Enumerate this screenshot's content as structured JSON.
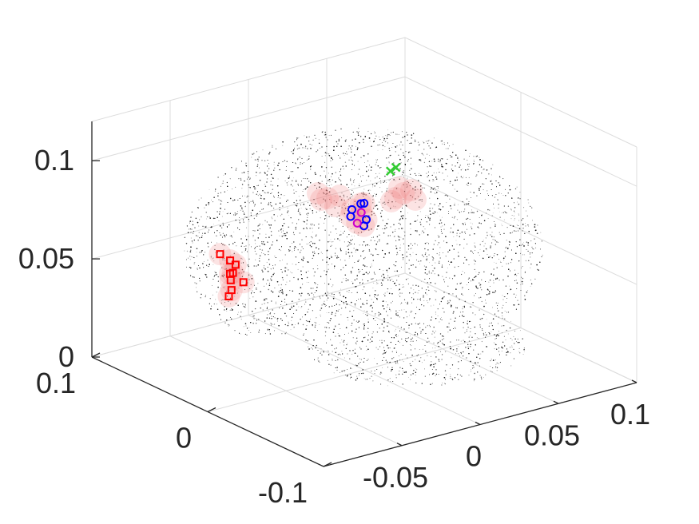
{
  "chart_data": {
    "type": "scatter",
    "view": "3d",
    "title": "",
    "xlabel": "",
    "ylabel": "",
    "zlabel": "",
    "grid": true,
    "xlim": [
      -0.1,
      0.1
    ],
    "ylim": [
      -0.1,
      0.1
    ],
    "zlim": [
      0,
      0.12
    ],
    "x_ticks": [
      "-0.05",
      "0",
      "0.05",
      "0.1"
    ],
    "y_ticks": [
      "-0.1",
      "0",
      "0.1"
    ],
    "z_ticks": [
      "0",
      "0.05",
      "0.1"
    ],
    "colors": {
      "grid": "#dcdcdc",
      "axis": "#262626",
      "brain_points": "#1a1a1a",
      "activation": "#f08080",
      "series_red": "#ff0000",
      "series_blue": "#0000ff",
      "series_green": "#33cc33",
      "series_magenta": "#cc00cc"
    },
    "series": [
      {
        "marker": "square",
        "color": "#ff0000",
        "points": [
          [
            -0.06,
            0.03,
            0.058
          ],
          [
            -0.065,
            0.028,
            0.055
          ],
          [
            -0.058,
            0.035,
            0.052
          ],
          [
            -0.07,
            0.02,
            0.05
          ],
          [
            -0.062,
            0.032,
            0.06
          ],
          [
            -0.068,
            0.025,
            0.045
          ],
          [
            -0.055,
            0.03,
            0.048
          ],
          [
            -0.072,
            0.018,
            0.056
          ],
          [
            -0.064,
            0.038,
            0.062
          ]
        ]
      },
      {
        "marker": "circle",
        "color": "#0000ff",
        "points": [
          [
            0.02,
            0.03,
            0.072
          ],
          [
            0.018,
            0.035,
            0.068
          ],
          [
            0.022,
            0.028,
            0.064
          ],
          [
            0.015,
            0.032,
            0.066
          ],
          [
            0.025,
            0.034,
            0.07
          ],
          [
            0.019,
            0.026,
            0.062
          ]
        ]
      },
      {
        "marker": "circle",
        "color": "#cc00cc",
        "points": [
          [
            0.021,
            0.031,
            0.067
          ],
          [
            0.017,
            0.029,
            0.063
          ]
        ]
      },
      {
        "marker": "x",
        "color": "#33cc33",
        "points": [
          [
            0.035,
            0.02,
            0.09
          ],
          [
            0.033,
            0.022,
            0.088
          ]
        ]
      }
    ]
  }
}
